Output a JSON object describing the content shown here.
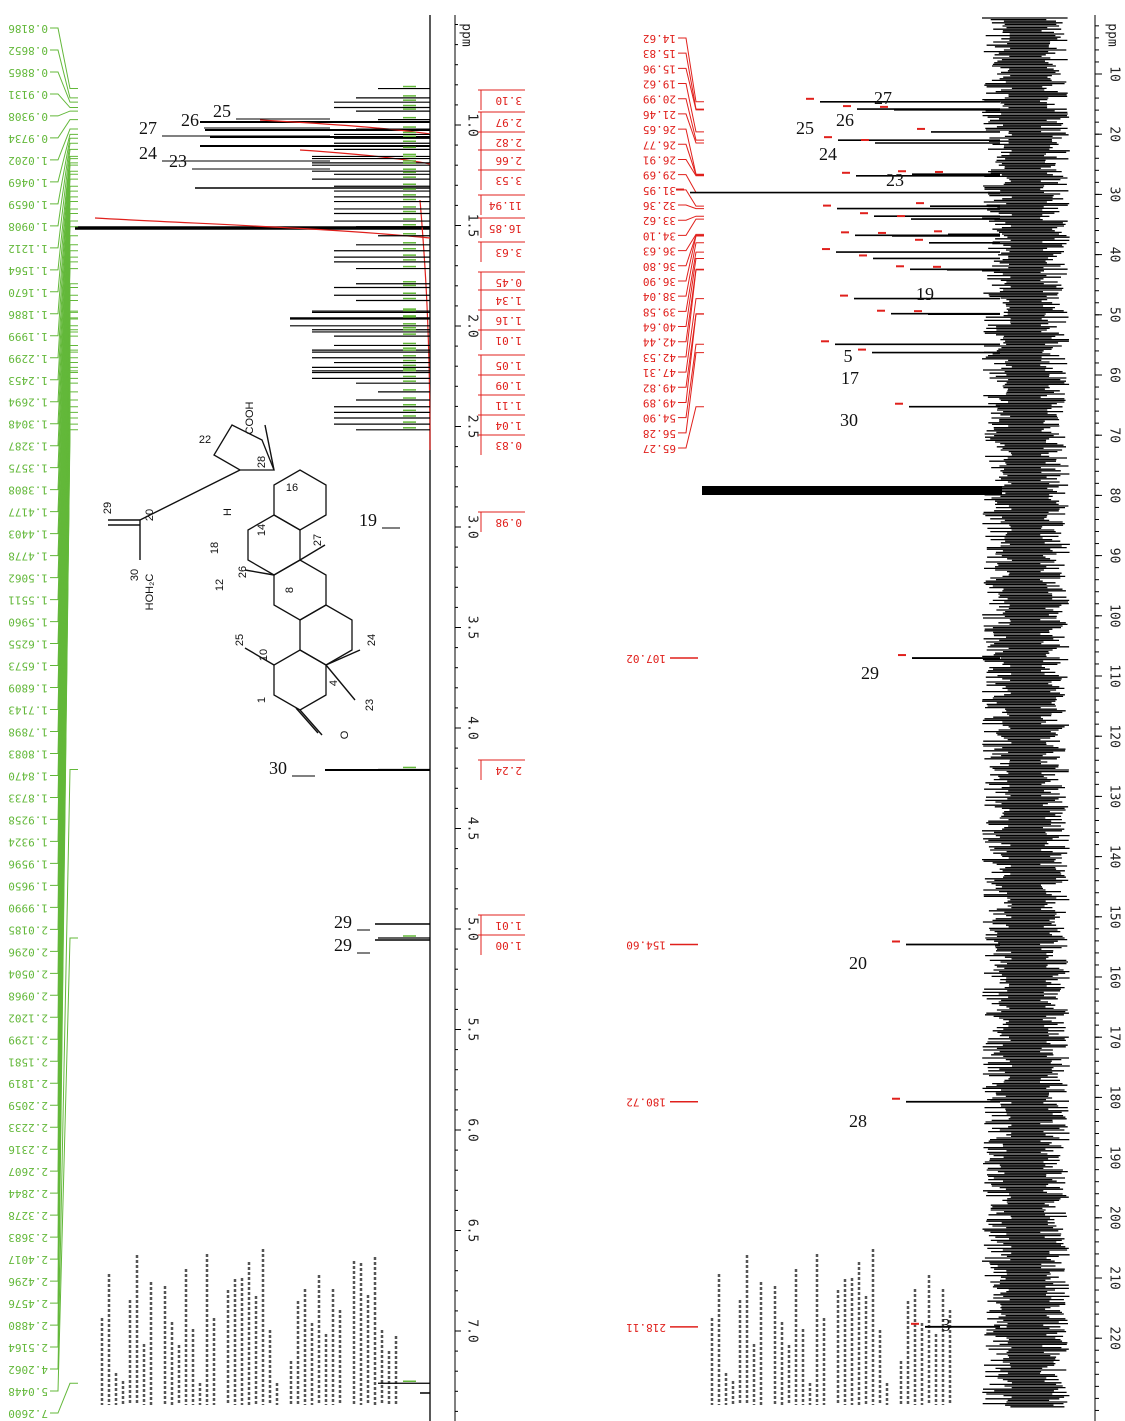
{
  "proton_spectrum": {
    "axis_unit": "ppm",
    "ticks": [
      "1.0",
      "1.5",
      "2.0",
      "2.5",
      "3.0",
      "3.5",
      "4.0",
      "4.5",
      "5.0",
      "5.5",
      "6.0",
      "6.5",
      "7.0"
    ],
    "peak_list": [
      "0.8186",
      "0.8652",
      "0.8865",
      "0.9131",
      "0.9308",
      "0.9734",
      "1.0202",
      "1.0469",
      "1.0659",
      "1.0908",
      "1.1212",
      "1.1564",
      "1.1670",
      "1.1886",
      "1.1999",
      "1.2299",
      "1.2453",
      "1.2694",
      "1.3048",
      "1.3287",
      "1.3575",
      "1.3808",
      "1.4177",
      "1.4403",
      "1.4778",
      "1.5062",
      "1.5511",
      "1.5960",
      "1.6255",
      "1.6573",
      "1.6809",
      "1.7143",
      "1.7898",
      "1.8083",
      "1.8470",
      "1.8733",
      "1.9258",
      "1.9324",
      "1.9596",
      "1.9650",
      "1.9990",
      "2.0185",
      "2.0296",
      "2.0504",
      "2.0968",
      "2.1202",
      "2.1299",
      "2.1581",
      "2.1819",
      "2.2059",
      "2.2233",
      "2.2316",
      "2.2607",
      "2.2844",
      "2.3278",
      "2.3683",
      "2.4017",
      "2.4296",
      "2.4576",
      "2.4880",
      "2.5164",
      "4.2062",
      "5.0448",
      "7.2600"
    ],
    "integrals": [
      "3.10",
      "2.97",
      "2.82",
      "2.66",
      "3.53",
      "11.94",
      "16.85",
      "3.63",
      "0.45",
      "1.34",
      "1.16",
      "1.01",
      "1.05",
      "1.09",
      "1.11",
      "1.04",
      "0.83",
      "0.98",
      "2.24",
      "1.01",
      "1.00"
    ],
    "assignments": [
      "25",
      "26",
      "27",
      "24",
      "23",
      "19",
      "30",
      "29",
      "29"
    ]
  },
  "carbon_spectrum": {
    "axis_unit": "ppm",
    "ticks": [
      10,
      20,
      30,
      40,
      50,
      60,
      70,
      80,
      90,
      100,
      110,
      120,
      130,
      140,
      150,
      160,
      170,
      180,
      190,
      200,
      210,
      220
    ],
    "peak_list": [
      "14.62",
      "15.83",
      "15.96",
      "19.62",
      "20.99",
      "21.46",
      "26.65",
      "26.77",
      "26.91",
      "29.69",
      "31.95",
      "32.36",
      "33.62",
      "34.10",
      "36.63",
      "36.80",
      "36.90",
      "38.04",
      "39.58",
      "40.64",
      "42.44",
      "42.53",
      "47.31",
      "49.82",
      "49.89",
      "54.90",
      "56.28",
      "65.27"
    ],
    "isolated_peaks": [
      "107.02",
      "154.60",
      "180.72",
      "218.11"
    ],
    "assignments": [
      "27",
      "26",
      "25",
      "24",
      "23",
      "19",
      "5",
      "17",
      "30",
      "29",
      "20",
      "28",
      "3"
    ]
  },
  "structure": {
    "labels": [
      "COOH",
      "22",
      "28",
      "16",
      "20",
      "29",
      "18",
      "H",
      "14",
      "27",
      "30",
      "HOH₂C",
      "12",
      "26",
      "8",
      "25",
      "10",
      "24",
      "1",
      "4",
      "23",
      "O"
    ]
  }
}
